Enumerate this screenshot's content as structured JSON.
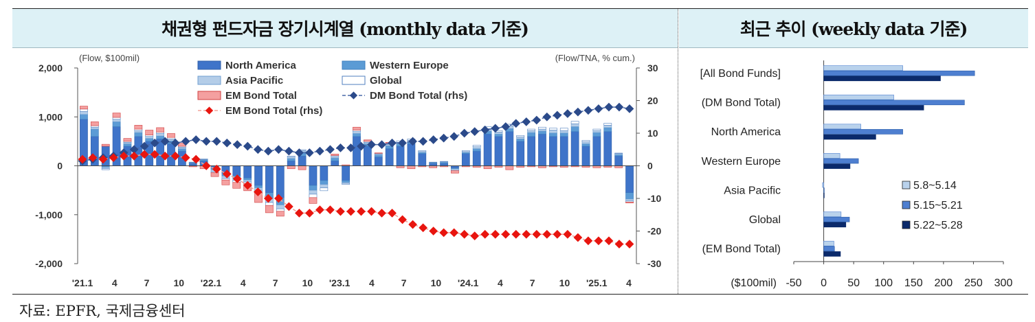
{
  "left_title": "채권형 펀드자금 장기시계열 (monthly data 기준)",
  "right_title": "최근 추이 (weekly data 기준)",
  "source": "자료: EPFR,  국제금융센터",
  "colors": {
    "north_america": "#3f74c9",
    "western_europe": "#5b9bd5",
    "asia_pacific": "#b4cde8",
    "global": "#ffffff",
    "em_bond": "#f4a0a0",
    "dm_rhs": "#2b4a8a",
    "em_rhs": "#e8150f",
    "weekly1": "#b9d2ec",
    "weekly2": "#4e7fd0",
    "weekly3": "#0b2a6b"
  },
  "chart_data": [
    {
      "type": "bar",
      "stacked": true,
      "title": "채권형 펀드자금 장기시계열 (monthly data 기준)",
      "ylabel_left": "(Flow, $100mil)",
      "ylabel_right": "(Flow/TNA, % cum.)",
      "ylim": [
        -2000,
        2000
      ],
      "yticks": [
        -2000,
        -1000,
        0,
        1000,
        2000
      ],
      "y2lim": [
        -30,
        30
      ],
      "y2ticks": [
        -30,
        -20,
        -10,
        0,
        10,
        20,
        30
      ],
      "x_tick_labels": [
        "'21.1",
        "4",
        "7",
        "10",
        "'22.1",
        "4",
        "7",
        "10",
        "'23.1",
        "4",
        "7",
        "10",
        "'24.1",
        "4",
        "7",
        "10",
        "'25.1",
        "4"
      ],
      "legend": [
        "North America",
        "Western Europe",
        "Asia Pacific",
        "Global",
        "EM Bond Total",
        "DM Bond Total (rhs)",
        "EM Bond Total (rhs)"
      ],
      "series": [
        {
          "name": "North America",
          "values": [
            950,
            600,
            400,
            800,
            400,
            600,
            500,
            550,
            450,
            300,
            50,
            100,
            -50,
            -150,
            -200,
            -250,
            -400,
            -550,
            -650,
            100,
            200,
            -400,
            -300,
            100,
            -300,
            600,
            400,
            180,
            350,
            400,
            450,
            250,
            50,
            50,
            -50,
            250,
            300,
            650,
            600,
            700,
            500,
            600,
            650,
            600,
            600,
            700,
            400,
            600,
            700,
            200,
            -550
          ]
        },
        {
          "name": "Western Europe",
          "values": [
            100,
            150,
            -30,
            100,
            50,
            80,
            60,
            60,
            60,
            50,
            10,
            20,
            -30,
            -60,
            -60,
            -40,
            -50,
            -120,
            -150,
            50,
            80,
            -100,
            -80,
            60,
            -40,
            60,
            50,
            40,
            60,
            50,
            40,
            20,
            10,
            20,
            -10,
            20,
            50,
            60,
            50,
            60,
            50,
            80,
            60,
            70,
            70,
            100,
            50,
            80,
            80,
            30,
            -130
          ]
        },
        {
          "name": "Asia Pacific",
          "values": [
            60,
            40,
            -30,
            50,
            30,
            40,
            40,
            50,
            40,
            30,
            10,
            10,
            -40,
            -50,
            -40,
            -40,
            -50,
            -80,
            -80,
            30,
            30,
            -80,
            -70,
            30,
            -20,
            40,
            30,
            20,
            30,
            30,
            30,
            20,
            10,
            10,
            -20,
            20,
            40,
            50,
            40,
            50,
            40,
            40,
            40,
            60,
            50,
            60,
            40,
            40,
            50,
            20,
            -40
          ]
        },
        {
          "name": "Global",
          "values": [
            50,
            30,
            -20,
            40,
            20,
            30,
            30,
            30,
            30,
            20,
            5,
            10,
            -20,
            -30,
            -40,
            -30,
            -50,
            -60,
            -50,
            20,
            20,
            -70,
            -60,
            20,
            -20,
            30,
            20,
            15,
            20,
            30,
            30,
            20,
            5,
            10,
            -20,
            20,
            30,
            40,
            30,
            40,
            30,
            30,
            40,
            40,
            50,
            50,
            30,
            30,
            40,
            10,
            -20
          ]
        },
        {
          "name": "EM Bond Total",
          "values": [
            60,
            80,
            40,
            90,
            60,
            80,
            100,
            90,
            80,
            60,
            -20,
            -60,
            -80,
            -100,
            -120,
            -150,
            -200,
            -150,
            -100,
            -60,
            -80,
            -120,
            0,
            30,
            20,
            60,
            30,
            10,
            20,
            -40,
            -60,
            -20,
            -40,
            -20,
            -50,
            -20,
            -30,
            -60,
            -30,
            -80,
            -30,
            -20,
            -40,
            -20,
            -30,
            -20,
            -30,
            -40,
            -30,
            -40,
            -20
          ]
        },
        {
          "name": "DM Bond Total (rhs)",
          "values": [
            1.5,
            2.0,
            2.5,
            3.0,
            4.0,
            5.0,
            6.0,
            7.0,
            7.5,
            7.0,
            7.5,
            8.0,
            7.5,
            7.5,
            7.0,
            6.5,
            6.0,
            5.0,
            4.5,
            5.0,
            4.5,
            4.0,
            4.0,
            4.5,
            5.0,
            5.5,
            5.5,
            6.0,
            6.5,
            6.5,
            7.0,
            7.0,
            7.5,
            7.5,
            8.0,
            8.5,
            9.0,
            10.0,
            10.5,
            11.0,
            11.5,
            12.0,
            13.0,
            13.5,
            14.0,
            15.0,
            15.5,
            16.0,
            16.5,
            17.0,
            17.5,
            18.0,
            18.0,
            17.5
          ]
        },
        {
          "name": "EM Bond Total (rhs)",
          "values": [
            2.0,
            2.5,
            2.0,
            2.5,
            3.0,
            3.0,
            3.5,
            3.5,
            3.0,
            3.0,
            2.5,
            2.0,
            0,
            -1.0,
            -2.5,
            -4.0,
            -6.0,
            -8.0,
            -10.0,
            -10.0,
            -12.5,
            -14.5,
            -14.5,
            -13.5,
            -13.5,
            -14.0,
            -14.0,
            -14.0,
            -14.0,
            -14.5,
            -14.5,
            -16.5,
            -18.0,
            -19.0,
            -20.0,
            -20.5,
            -20.5,
            -21.0,
            -21.5,
            -21.0,
            -21.0,
            -21.0,
            -21.0,
            -21.0,
            -21.0,
            -21.0,
            -21.0,
            -21.0,
            -22.0,
            -23.0,
            -23.0,
            -23.0,
            -24.0,
            -24.0
          ]
        }
      ]
    },
    {
      "type": "bar",
      "orientation": "horizontal",
      "title": "최근 추이 (weekly data 기준)",
      "xlabel": "($100mil)",
      "xlim": [
        -50,
        300
      ],
      "xticks": [
        -50,
        0,
        50,
        100,
        150,
        200,
        250,
        300
      ],
      "categories": [
        "[All Bond Funds]",
        "(DM Bond Total)",
        "North America",
        "Western Europe",
        "Asia Pacific",
        "Global",
        "(EM Bond Total)"
      ],
      "series": [
        {
          "name": "5.8~5.14",
          "values": [
            132,
            117,
            62,
            27,
            -2,
            29,
            17
          ]
        },
        {
          "name": "5.15~5.21",
          "values": [
            252,
            235,
            132,
            58,
            0,
            43,
            18
          ]
        },
        {
          "name": "5.22~5.28",
          "values": [
            195,
            167,
            87,
            44,
            0,
            37,
            28
          ]
        }
      ],
      "legend": [
        "5.8~5.14",
        "5.15~5.21",
        "5.22~5.28"
      ]
    }
  ]
}
